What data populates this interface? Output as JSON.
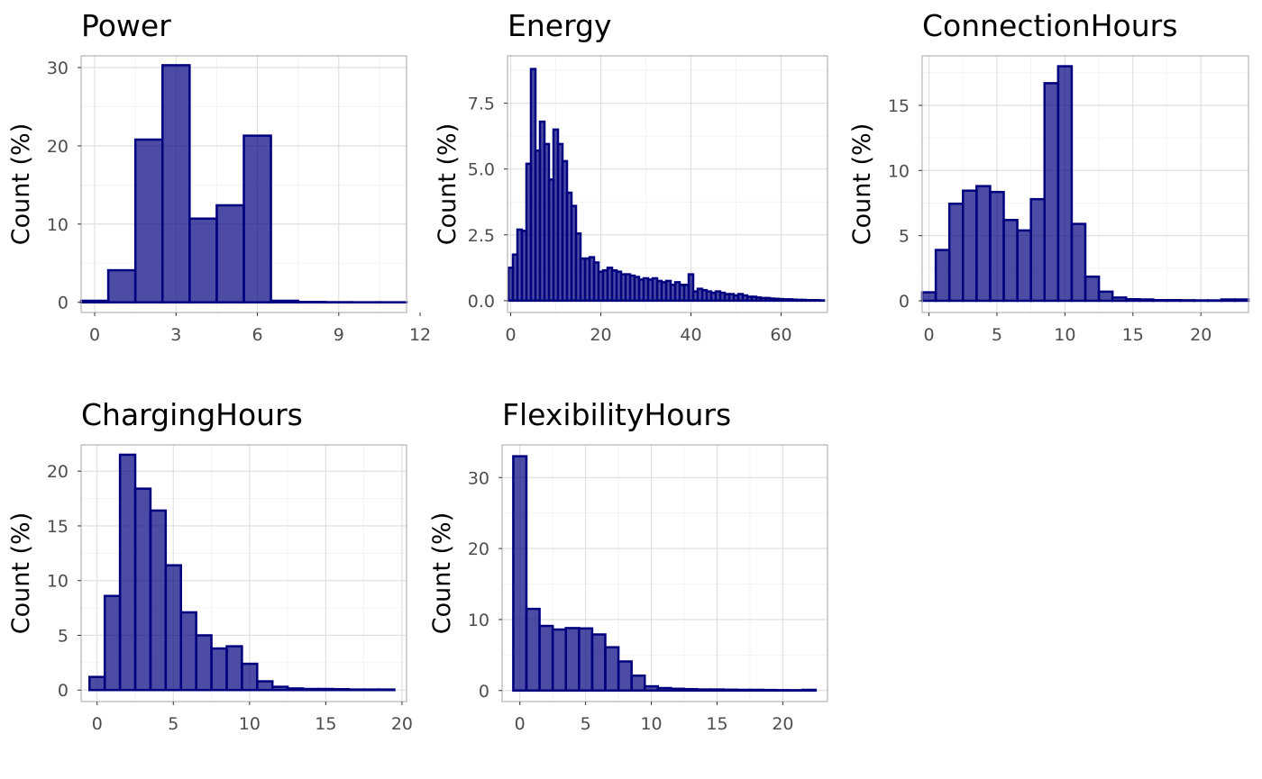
{
  "chart_data": [
    {
      "type": "bar",
      "title": "Power",
      "ylabel": "Count (%)",
      "xlim": [
        -0.5,
        11.5
      ],
      "ylim": [
        -1.3,
        31.5
      ],
      "xticks": [
        0,
        3,
        6,
        9,
        12
      ],
      "yticks": [
        0,
        10,
        20,
        30
      ],
      "binwidth": 1,
      "x": [
        0,
        1,
        2,
        3,
        4,
        5,
        6,
        7,
        8,
        9,
        10,
        11
      ],
      "values": [
        0.2,
        4.1,
        20.8,
        30.3,
        10.7,
        12.4,
        21.3,
        0.2,
        0.05,
        0.02,
        0.01,
        0.01
      ]
    },
    {
      "type": "bar",
      "title": "Energy",
      "ylabel": "Count (%)",
      "xlim": [
        -0.7,
        70.3
      ],
      "ylim": [
        -0.45,
        9.3
      ],
      "xticks": [
        0,
        20,
        40,
        60
      ],
      "ytick_labels": [
        "0.0",
        "2.5",
        "5.0",
        "7.5"
      ],
      "yticks": [
        0,
        2.5,
        5,
        7.5
      ],
      "binwidth": 1,
      "x": [
        0,
        1,
        2,
        3,
        4,
        5,
        6,
        7,
        8,
        9,
        10,
        11,
        12,
        13,
        14,
        15,
        16,
        17,
        18,
        19,
        20,
        21,
        22,
        23,
        24,
        25,
        26,
        27,
        28,
        29,
        30,
        31,
        32,
        33,
        34,
        35,
        36,
        37,
        38,
        39,
        40,
        41,
        42,
        43,
        44,
        45,
        46,
        47,
        48,
        49,
        50,
        51,
        52,
        53,
        54,
        55,
        56,
        57,
        58,
        59,
        60,
        61,
        62,
        63,
        64,
        65,
        66,
        67,
        68,
        69
      ],
      "values": [
        1.25,
        1.75,
        2.7,
        2.65,
        5.2,
        8.8,
        5.7,
        6.8,
        5.95,
        4.6,
        6.5,
        5.95,
        5.3,
        4.1,
        3.6,
        2.55,
        1.6,
        1.6,
        1.65,
        1.45,
        1.1,
        1.15,
        1.25,
        1.15,
        1.1,
        1.0,
        1.0,
        0.95,
        0.9,
        0.8,
        0.85,
        0.8,
        0.85,
        0.75,
        0.7,
        0.75,
        0.6,
        0.7,
        0.6,
        0.6,
        1.0,
        0.35,
        0.45,
        0.4,
        0.35,
        0.3,
        0.35,
        0.3,
        0.25,
        0.25,
        0.2,
        0.25,
        0.2,
        0.15,
        0.15,
        0.12,
        0.1,
        0.1,
        0.08,
        0.07,
        0.06,
        0.05,
        0.05,
        0.04,
        0.03,
        0.03,
        0.02,
        0.02,
        0.02,
        0.01
      ]
    },
    {
      "type": "bar",
      "title": "ConnectionHours",
      "ylabel": "Count (%)",
      "xlim": [
        -0.5,
        23.5
      ],
      "ylim": [
        -0.9,
        18.8
      ],
      "xticks": [
        0,
        5,
        10,
        15,
        20
      ],
      "yticks": [
        0,
        5,
        10,
        15
      ],
      "binwidth": 1,
      "x": [
        0,
        1,
        2,
        3,
        4,
        5,
        6,
        7,
        8,
        9,
        10,
        11,
        12,
        13,
        14,
        15,
        16,
        17,
        18,
        19,
        20,
        21,
        22,
        23
      ],
      "values": [
        0.65,
        3.9,
        7.45,
        8.45,
        8.8,
        8.35,
        6.2,
        5.4,
        7.8,
        16.7,
        18.0,
        5.9,
        1.85,
        0.7,
        0.25,
        0.12,
        0.1,
        0.05,
        0.05,
        0.04,
        0.03,
        0.03,
        0.1,
        0.1
      ]
    },
    {
      "type": "bar",
      "title": "ChargingHours",
      "ylabel": "Count (%)",
      "xlim": [
        -1.05,
        20.3
      ],
      "ylim": [
        -1.05,
        22.4
      ],
      "xticks": [
        0,
        5,
        10,
        15,
        20
      ],
      "yticks": [
        0,
        5,
        10,
        15,
        20
      ],
      "binwidth": 1,
      "x": [
        0,
        1,
        2,
        3,
        4,
        5,
        6,
        7,
        8,
        9,
        10,
        11,
        12,
        13,
        14,
        15,
        16,
        17,
        18,
        19
      ],
      "values": [
        1.2,
        8.6,
        21.5,
        18.4,
        16.4,
        11.4,
        7.1,
        5.0,
        3.8,
        4.0,
        2.4,
        0.8,
        0.3,
        0.15,
        0.1,
        0.1,
        0.08,
        0.05,
        0.05,
        0.05
      ]
    },
    {
      "type": "bar",
      "title": "FlexibilityHours",
      "ylabel": "Count (%)",
      "xlim": [
        -1.35,
        23.4
      ],
      "ylim": [
        -1.55,
        34.6
      ],
      "xticks": [
        0,
        5,
        10,
        15,
        20
      ],
      "yticks": [
        0,
        10,
        20,
        30
      ],
      "binwidth": 1,
      "x": [
        0,
        1,
        2,
        3,
        4,
        5,
        6,
        7,
        8,
        9,
        10,
        11,
        12,
        13,
        14,
        15,
        16,
        17,
        18,
        19,
        20,
        21,
        22
      ],
      "values": [
        33.0,
        11.5,
        9.1,
        8.6,
        8.8,
        8.75,
        7.9,
        6.1,
        4.1,
        2.1,
        0.6,
        0.35,
        0.25,
        0.2,
        0.15,
        0.15,
        0.12,
        0.1,
        0.1,
        0.08,
        0.06,
        0.05,
        0.1
      ]
    }
  ]
}
